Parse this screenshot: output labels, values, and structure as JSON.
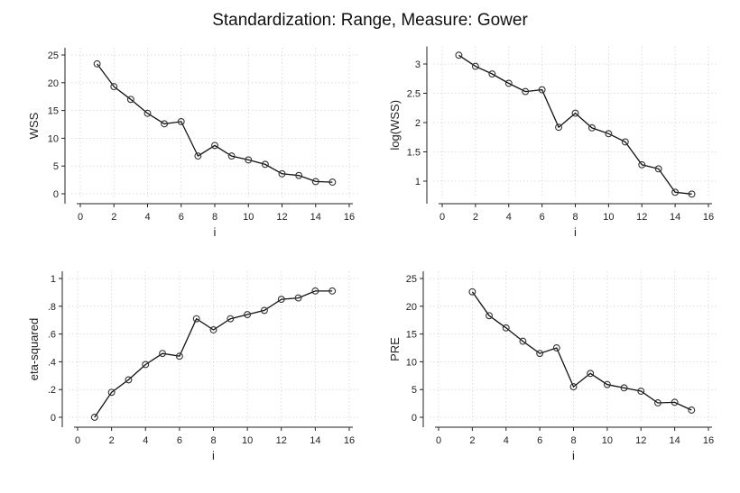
{
  "title": "Standardization: Range, Measure: Gower",
  "chart_data": [
    {
      "type": "line",
      "xlabel": "i",
      "ylabel": "WSS",
      "xlim": [
        0,
        16
      ],
      "ylim": [
        0,
        25
      ],
      "xticks": [
        0,
        2,
        4,
        6,
        8,
        10,
        12,
        14,
        16
      ],
      "yticks": [
        0,
        5,
        10,
        15,
        20,
        25
      ],
      "ytick_labels": [
        "0",
        "5",
        "10",
        "15",
        "20",
        "25"
      ],
      "grid": true,
      "marker": "hollow-circle",
      "x": [
        1,
        2,
        3,
        4,
        5,
        6,
        7,
        8,
        9,
        10,
        11,
        12,
        13,
        14,
        15
      ],
      "y": [
        23.4,
        19.3,
        17.0,
        14.5,
        12.6,
        13.0,
        6.8,
        8.7,
        6.8,
        6.1,
        5.3,
        3.6,
        3.3,
        2.2,
        2.1
      ]
    },
    {
      "type": "line",
      "xlabel": "i",
      "ylabel": "log(WSS)",
      "xlim": [
        0,
        16
      ],
      "ylim": [
        0.6,
        3.3
      ],
      "xticks": [
        0,
        2,
        4,
        6,
        8,
        10,
        12,
        14,
        16
      ],
      "yticks": [
        1,
        1.5,
        2,
        2.5,
        3
      ],
      "ytick_labels": [
        "1",
        "1.5",
        "2",
        "2.5",
        "3"
      ],
      "grid": true,
      "marker": "hollow-circle",
      "x": [
        1,
        2,
        3,
        4,
        5,
        6,
        7,
        8,
        9,
        10,
        11,
        12,
        13,
        14,
        15
      ],
      "y": [
        3.15,
        2.96,
        2.83,
        2.67,
        2.53,
        2.56,
        1.92,
        2.16,
        1.91,
        1.81,
        1.67,
        1.28,
        1.21,
        0.81,
        0.78
      ]
    },
    {
      "type": "line",
      "xlabel": "i",
      "ylabel": "eta-squared",
      "xlim": [
        0,
        16
      ],
      "ylim": [
        0,
        1
      ],
      "xticks": [
        0,
        2,
        4,
        6,
        8,
        10,
        12,
        14,
        16
      ],
      "yticks": [
        0,
        0.2,
        0.4,
        0.6,
        0.8,
        1
      ],
      "ytick_labels": [
        "0",
        ".2",
        ".4",
        ".6",
        ".8",
        "1"
      ],
      "grid": true,
      "marker": "hollow-circle",
      "x": [
        1,
        2,
        3,
        4,
        5,
        6,
        7,
        8,
        9,
        10,
        11,
        12,
        13,
        14,
        15
      ],
      "y": [
        0.0,
        0.18,
        0.27,
        0.38,
        0.46,
        0.44,
        0.71,
        0.63,
        0.71,
        0.74,
        0.77,
        0.85,
        0.86,
        0.91,
        0.91
      ]
    },
    {
      "type": "line",
      "xlabel": "i",
      "ylabel": "PRE",
      "xlim": [
        0,
        16
      ],
      "ylim": [
        0,
        25
      ],
      "xticks": [
        0,
        2,
        4,
        6,
        8,
        10,
        12,
        14,
        16
      ],
      "yticks": [
        0,
        5,
        10,
        15,
        20,
        25
      ],
      "ytick_labels": [
        "0",
        "5",
        "10",
        "15",
        "20",
        "25"
      ],
      "grid": true,
      "marker": "hollow-circle",
      "x": [
        2,
        3,
        4,
        5,
        6,
        7,
        8,
        9,
        10,
        11,
        12,
        13,
        14,
        15
      ],
      "y": [
        22.6,
        18.3,
        16.1,
        13.7,
        11.5,
        12.5,
        5.5,
        7.9,
        5.9,
        5.3,
        4.7,
        2.6,
        2.7,
        1.3
      ]
    }
  ]
}
